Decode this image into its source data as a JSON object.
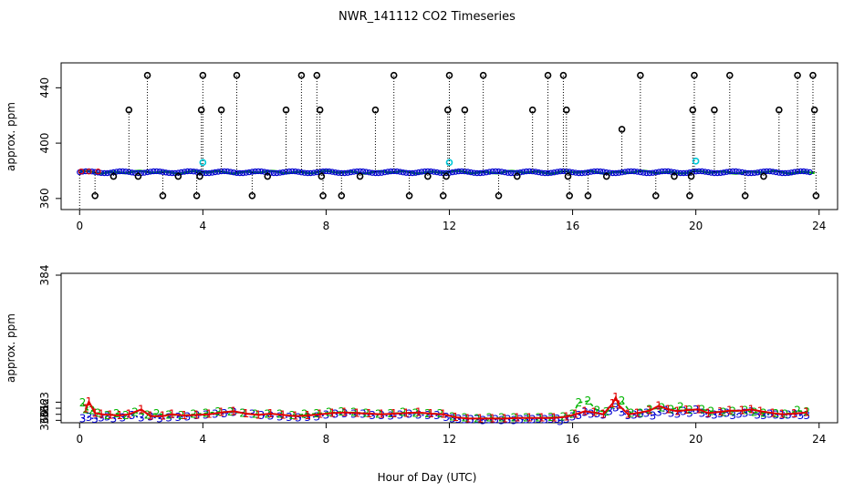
{
  "title": "NWR_141112  CO2 Timeseries",
  "xlabel": "Hour of Day (UTC)",
  "series_colors": {
    "1": "#e00000",
    "2": "#00b400",
    "3": "#0000d0",
    "flag_black": "#000000",
    "flag_cyan": "#00c8d8"
  },
  "chart_data": [
    {
      "type": "scatter",
      "panel": "top",
      "ylabel": "approx. ppm",
      "xlim": [
        -0.6,
        24.6
      ],
      "ylim": [
        352,
        458
      ],
      "xticks": [
        0,
        4,
        8,
        12,
        16,
        20,
        24
      ],
      "yticks": [
        360,
        400,
        440
      ],
      "grid": false,
      "baseline": 379,
      "flag_black_x": [
        0.5,
        1.1,
        1.6,
        1.9,
        2.2,
        2.7,
        3.2,
        3.8,
        3.9,
        3.95,
        4.0,
        4.6,
        5.1,
        5.6,
        6.1,
        6.7,
        7.2,
        7.7,
        7.8,
        7.85,
        7.9,
        8.5,
        9.1,
        9.6,
        10.2,
        10.7,
        11.3,
        11.8,
        11.9,
        11.95,
        12.0,
        12.5,
        13.1,
        13.6,
        14.2,
        14.7,
        15.2,
        15.7,
        15.8,
        15.85,
        15.9,
        16.5,
        17.1,
        17.6,
        18.2,
        18.7,
        19.3,
        19.8,
        19.85,
        19.9,
        19.95,
        20.6,
        21.1,
        21.6,
        22.2,
        22.7,
        23.3,
        23.8,
        23.85,
        23.9
      ],
      "flag_black_y": [
        362,
        376,
        424,
        376,
        449,
        362,
        376,
        362,
        376,
        424,
        449,
        424,
        449,
        362,
        376,
        424,
        449,
        449,
        424,
        376,
        362,
        362,
        376,
        424,
        449,
        362,
        376,
        362,
        376,
        424,
        449,
        424,
        449,
        362,
        376,
        424,
        449,
        449,
        424,
        376,
        362,
        362,
        376,
        410,
        449,
        362,
        376,
        362,
        376,
        424,
        449,
        424,
        449,
        362,
        376,
        424,
        449,
        449,
        424,
        362
      ],
      "flag_cyan_x": [
        4.0,
        12.0,
        20.0
      ],
      "flag_cyan_y": [
        386,
        386,
        387
      ]
    },
    {
      "type": "scatter",
      "panel": "bottom",
      "ylabel": "approx. ppm",
      "xlim": [
        -0.6,
        24.6
      ],
      "ylim": [
        359.6,
        384.3
      ],
      "xticks": [
        0,
        4,
        8,
        12,
        16,
        20,
        24
      ],
      "yticks": [
        360,
        361,
        362,
        363,
        384
      ],
      "grid": false,
      "series": [
        {
          "name": "1",
          "x": [
            0.2,
            0.3,
            0.5,
            0.7,
            1.0,
            1.3,
            1.6,
            2.0,
            2.3,
            2.7,
            3.0,
            3.4,
            3.8,
            4.2,
            4.6,
            5.0,
            5.4,
            5.8,
            6.2,
            6.6,
            7.0,
            7.4,
            7.8,
            8.2,
            8.6,
            9.0,
            9.4,
            9.8,
            10.2,
            10.6,
            11.0,
            11.4,
            11.8,
            12.2,
            12.6,
            13.0,
            13.4,
            13.8,
            14.2,
            14.6,
            15.0,
            15.4,
            15.8,
            16.1,
            16.4,
            16.7,
            17.0,
            17.3,
            17.4,
            17.5,
            17.8,
            18.1,
            18.5,
            18.8,
            19.1,
            19.4,
            19.7,
            20.1,
            20.4,
            20.8,
            21.1,
            21.5,
            21.8,
            22.1,
            22.5,
            22.8,
            23.2,
            23.6
          ],
          "y": [
            361.9,
            363.1,
            361.2,
            361.0,
            360.9,
            360.8,
            361.0,
            361.8,
            360.7,
            360.7,
            361.0,
            360.8,
            360.9,
            361.0,
            361.3,
            361.5,
            361.1,
            360.9,
            361.1,
            360.9,
            360.7,
            360.8,
            361.0,
            361.2,
            361.3,
            361.2,
            361.1,
            361.0,
            361.1,
            361.2,
            361.3,
            361.1,
            361.0,
            360.5,
            360.3,
            360.3,
            360.3,
            360.3,
            360.4,
            360.4,
            360.4,
            360.4,
            360.6,
            361.0,
            361.5,
            361.3,
            361.0,
            362.8,
            363.8,
            362.5,
            361.0,
            361.2,
            361.6,
            362.4,
            361.8,
            361.5,
            361.7,
            361.8,
            361.2,
            361.4,
            361.6,
            361.6,
            361.8,
            361.5,
            361.2,
            361.0,
            361.1,
            361.3
          ]
        },
        {
          "name": "2",
          "x": [
            0.1,
            0.2,
            0.4,
            0.6,
            0.9,
            1.2,
            1.5,
            1.8,
            2.2,
            2.5,
            2.9,
            3.3,
            3.7,
            4.1,
            4.5,
            4.9,
            5.3,
            5.7,
            6.1,
            6.5,
            6.9,
            7.3,
            7.7,
            8.1,
            8.5,
            8.9,
            9.3,
            9.7,
            10.1,
            10.5,
            10.9,
            11.3,
            11.7,
            12.1,
            12.5,
            12.9,
            13.3,
            13.7,
            14.1,
            14.5,
            14.9,
            15.3,
            15.7,
            16.0,
            16.2,
            16.5,
            16.8,
            17.1,
            17.6,
            17.9,
            18.2,
            18.5,
            18.9,
            19.2,
            19.5,
            19.8,
            20.2,
            20.5,
            20.9,
            21.2,
            21.6,
            21.9,
            22.2,
            22.6,
            22.9,
            23.3,
            23.6
          ],
          "y": [
            362.9,
            361.8,
            361.6,
            361.2,
            360.8,
            361.1,
            360.8,
            361.3,
            360.9,
            361.1,
            360.9,
            360.8,
            361.0,
            361.2,
            361.4,
            361.4,
            361.2,
            361.0,
            361.0,
            361.0,
            360.8,
            361.0,
            361.1,
            361.3,
            361.4,
            361.3,
            361.2,
            361.0,
            361.1,
            361.3,
            361.2,
            361.1,
            361.1,
            360.6,
            360.4,
            360.3,
            360.4,
            360.4,
            360.4,
            360.4,
            360.4,
            360.5,
            360.6,
            361.0,
            362.9,
            363.2,
            361.6,
            361.4,
            363.2,
            361.2,
            361.2,
            361.8,
            362.1,
            361.8,
            362.2,
            361.7,
            361.8,
            361.5,
            361.3,
            361.5,
            361.6,
            361.3,
            361.2,
            361.1,
            361.0,
            361.6,
            361.4
          ]
        },
        {
          "name": "3",
          "x": [
            0.1,
            0.3,
            0.5,
            0.7,
            0.9,
            1.1,
            1.4,
            1.7,
            2.0,
            2.3,
            2.6,
            2.9,
            3.2,
            3.5,
            3.8,
            4.1,
            4.4,
            4.7,
            5.0,
            5.3,
            5.6,
            5.9,
            6.2,
            6.5,
            6.8,
            7.1,
            7.4,
            7.7,
            8.0,
            8.3,
            8.6,
            8.9,
            9.2,
            9.5,
            9.8,
            10.1,
            10.4,
            10.7,
            11.0,
            11.3,
            11.6,
            11.9,
            12.1,
            12.3,
            12.5,
            12.7,
            12.9,
            13.1,
            13.3,
            13.5,
            13.7,
            13.9,
            14.1,
            14.3,
            14.5,
            14.7,
            14.9,
            15.1,
            15.3,
            15.5,
            15.6,
            15.8,
            16.0,
            16.2,
            16.4,
            16.6,
            16.8,
            17.0,
            17.2,
            17.4,
            17.6,
            17.8,
            18.0,
            18.2,
            18.4,
            18.6,
            18.8,
            19.0,
            19.2,
            19.4,
            19.6,
            19.8,
            20.0,
            20.2,
            20.4,
            20.6,
            20.8,
            21.0,
            21.2,
            21.4,
            21.6,
            21.8,
            22.0,
            22.2,
            22.4,
            22.6,
            22.8,
            23.0,
            23.2,
            23.4,
            23.6
          ],
          "y": [
            360.3,
            360.5,
            360.2,
            360.4,
            360.6,
            360.3,
            360.4,
            360.8,
            360.4,
            360.6,
            360.3,
            360.4,
            360.5,
            360.6,
            360.8,
            360.9,
            361.0,
            361.1,
            361.3,
            361.2,
            361.0,
            360.8,
            360.7,
            360.6,
            360.5,
            360.4,
            360.5,
            360.6,
            360.9,
            361.0,
            361.1,
            361.0,
            361.0,
            360.8,
            360.8,
            360.7,
            360.9,
            361.0,
            360.9,
            360.8,
            360.8,
            360.5,
            360.3,
            360.2,
            360.1,
            360.1,
            360.1,
            360.0,
            360.1,
            360.1,
            360.0,
            360.1,
            360.0,
            360.1,
            360.1,
            360.1,
            360.2,
            360.1,
            360.2,
            360.2,
            359.8,
            360.2,
            360.6,
            360.8,
            361.3,
            361.0,
            361.1,
            360.9,
            361.5,
            362.1,
            361.3,
            360.8,
            360.9,
            361.0,
            361.2,
            360.7,
            361.3,
            361.6,
            361.2,
            361.0,
            361.5,
            361.2,
            361.7,
            361.2,
            361.0,
            360.9,
            361.1,
            361.2,
            360.8,
            361.0,
            361.2,
            361.4,
            360.9,
            360.8,
            361.0,
            360.9,
            360.8,
            360.9,
            361.0,
            360.8,
            360.8
          ]
        }
      ]
    }
  ]
}
